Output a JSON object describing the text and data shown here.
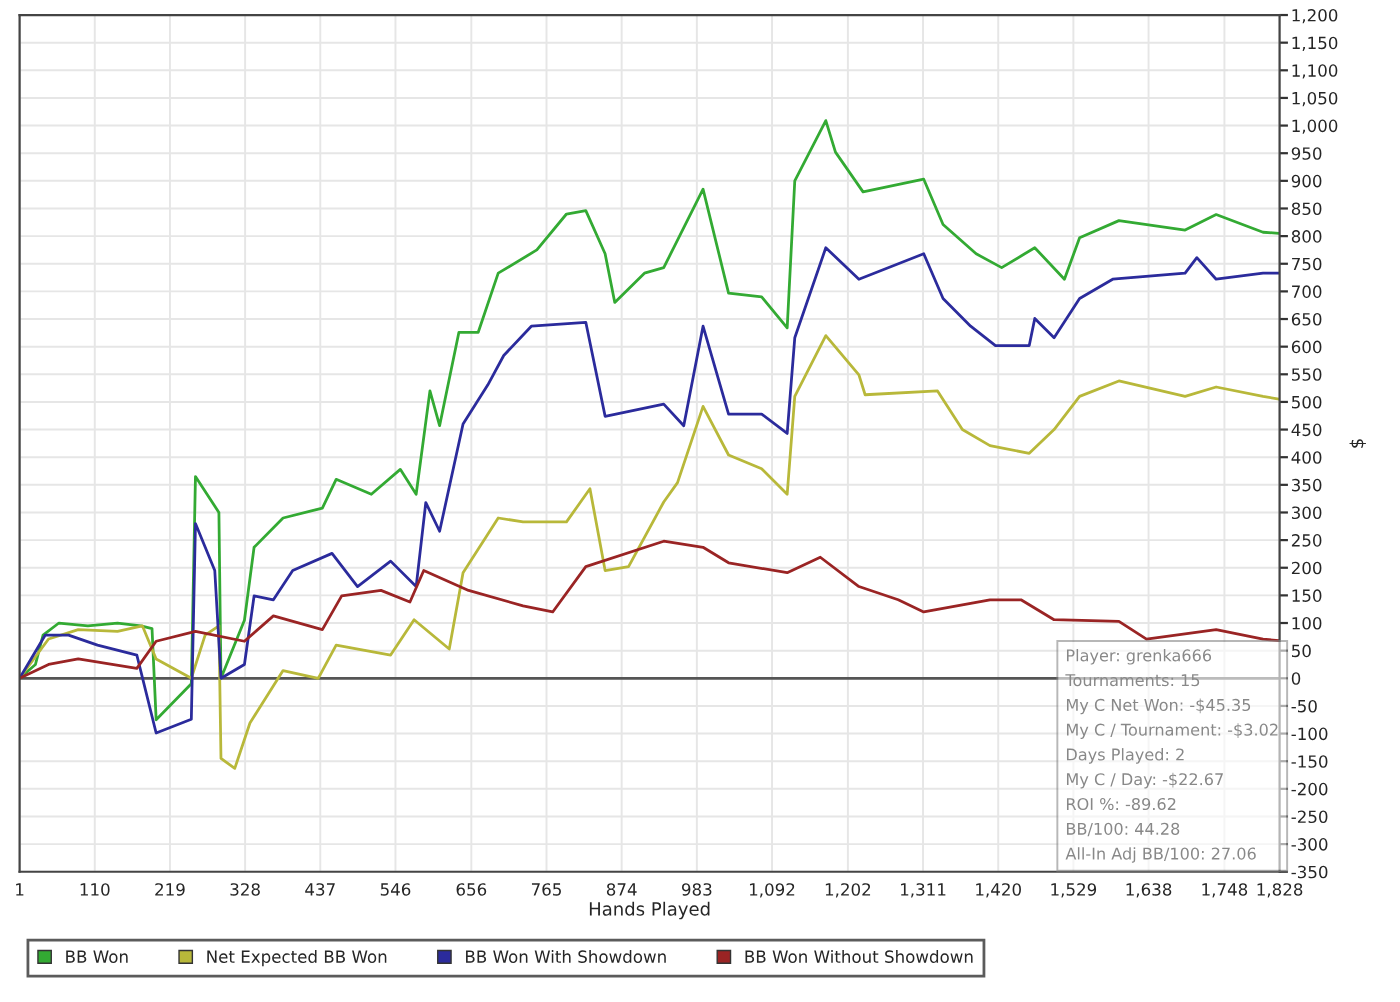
{
  "chart_data": {
    "type": "line",
    "xlabel": "Hands Played",
    "ylabel": "$",
    "series": [
      {
        "name": "BB Won",
        "color": "#33aa33",
        "x": [
          1,
          24,
          35,
          58,
          100,
          143,
          177,
          193,
          199,
          250,
          256,
          290,
          293,
          327,
          341,
          383,
          440,
          460,
          511,
          553,
          576,
          596,
          610,
          638,
          666,
          695,
          751,
          794,
          822,
          850,
          864,
          907,
          935,
          992,
          1029,
          1077,
          1114,
          1125,
          1170,
          1184,
          1224,
          1312,
          1340,
          1388,
          1425,
          1473,
          1516,
          1538,
          1595,
          1691,
          1736,
          1804,
          1827
        ],
        "values": [
          0,
          25,
          78,
          100,
          95,
          100,
          95,
          90,
          -75,
          -10,
          365,
          300,
          0,
          105,
          237,
          290,
          308,
          360,
          333,
          378,
          333,
          520,
          457,
          626,
          626,
          733,
          775,
          840,
          846,
          768,
          680,
          733,
          743,
          885,
          697,
          690,
          634,
          900,
          1009,
          952,
          880,
          903,
          821,
          768,
          743,
          779,
          722,
          797,
          828,
          811,
          839,
          807,
          805
        ]
      },
      {
        "name": "Net Expected BB Won",
        "color": "#b8b83a",
        "x": [
          1,
          43,
          86,
          143,
          179,
          199,
          250,
          270,
          290,
          293,
          313,
          335,
          383,
          434,
          460,
          539,
          573,
          624,
          644,
          695,
          731,
          794,
          828,
          850,
          884,
          935,
          955,
          992,
          1029,
          1077,
          1114,
          1125,
          1170,
          1218,
          1227,
          1332,
          1368,
          1408,
          1465,
          1501,
          1538,
          1595,
          1691,
          1736,
          1804,
          1827
        ],
        "values": [
          0,
          71,
          88,
          85,
          95,
          35,
          0,
          78,
          95,
          -145,
          -163,
          -81,
          14,
          0,
          60,
          42,
          106,
          53,
          191,
          290,
          283,
          283,
          343,
          195,
          202,
          319,
          354,
          492,
          404,
          379,
          333,
          510,
          620,
          549,
          513,
          520,
          450,
          421,
          407,
          450,
          510,
          538,
          510,
          527,
          510,
          505
        ]
      },
      {
        "name": "BB Won With Showdown",
        "color": "#2b2b9c",
        "x": [
          1,
          38,
          72,
          114,
          171,
          199,
          250,
          256,
          284,
          293,
          327,
          341,
          369,
          397,
          454,
          491,
          539,
          576,
          590,
          610,
          644,
          680,
          703,
          743,
          822,
          850,
          935,
          964,
          992,
          1029,
          1077,
          1114,
          1125,
          1170,
          1218,
          1312,
          1340,
          1380,
          1416,
          1465,
          1473,
          1501,
          1538,
          1586,
          1691,
          1708,
          1736,
          1804,
          1827
        ],
        "values": [
          0,
          78,
          78,
          60,
          42,
          -99,
          -74,
          280,
          195,
          0,
          25,
          149,
          142,
          195,
          226,
          166,
          212,
          166,
          318,
          266,
          460,
          531,
          584,
          637,
          644,
          474,
          496,
          457,
          637,
          478,
          478,
          443,
          616,
          779,
          722,
          768,
          687,
          637,
          602,
          602,
          651,
          616,
          687,
          722,
          733,
          761,
          722,
          733,
          733
        ]
      },
      {
        "name": "BB Won Without Showdown",
        "color": "#9a2424",
        "x": [
          1,
          43,
          86,
          171,
          199,
          256,
          327,
          369,
          440,
          468,
          525,
          567,
          587,
          652,
          731,
          774,
          822,
          935,
          992,
          1029,
          1114,
          1162,
          1218,
          1275,
          1312,
          1408,
          1453,
          1501,
          1595,
          1635,
          1736,
          1804,
          1827
        ],
        "values": [
          0,
          25,
          35,
          18,
          67,
          85,
          67,
          113,
          88,
          149,
          159,
          138,
          195,
          159,
          131,
          120,
          202,
          248,
          237,
          209,
          191,
          219,
          166,
          142,
          120,
          142,
          142,
          106,
          103,
          71,
          88,
          71,
          68
        ]
      }
    ],
    "xlim": [
      1,
      1828
    ],
    "xticks": [
      1,
      110,
      219,
      328,
      437,
      546,
      656,
      765,
      874,
      983,
      {
        "value": 1092,
        "label": "1,092"
      },
      {
        "value": 1202,
        "label": "1,202"
      },
      {
        "value": 1311,
        "label": "1,311"
      },
      {
        "value": 1420,
        "label": "1,420"
      },
      {
        "value": 1529,
        "label": "1,529"
      },
      {
        "value": 1638,
        "label": "1,638"
      },
      {
        "value": 1748,
        "label": "1,748"
      },
      {
        "value": 1828,
        "label": "1,828"
      }
    ],
    "ylim": [
      -350,
      1200
    ],
    "yticks": [
      -350,
      -300,
      -250,
      -200,
      -150,
      -100,
      -50,
      0,
      50,
      100,
      150,
      200,
      250,
      300,
      350,
      400,
      450,
      500,
      550,
      600,
      650,
      700,
      750,
      800,
      850,
      900,
      950,
      {
        "value": 1000,
        "label": "1,000"
      },
      {
        "value": 1050,
        "label": "1,050"
      },
      {
        "value": 1100,
        "label": "1,100"
      },
      {
        "value": 1150,
        "label": "1,150"
      },
      {
        "value": 1200,
        "label": "1,200"
      }
    ],
    "ref_lines": [
      {
        "axis": "y",
        "value": 0,
        "color": "#555555"
      }
    ],
    "annotations": [
      "Player: grenka666",
      "Tournaments: 15",
      "My C Net Won: -$45.35",
      "My C / Tournament: -$3.02",
      "Days Played: 2",
      "My C / Day: -$22.67",
      "ROI %: -89.62",
      "BB/100: 44.28",
      "All-In Adj BB/100: 27.06"
    ],
    "grid": true,
    "legend": "bottom",
    "marker": "none",
    "line_style": "solid"
  }
}
